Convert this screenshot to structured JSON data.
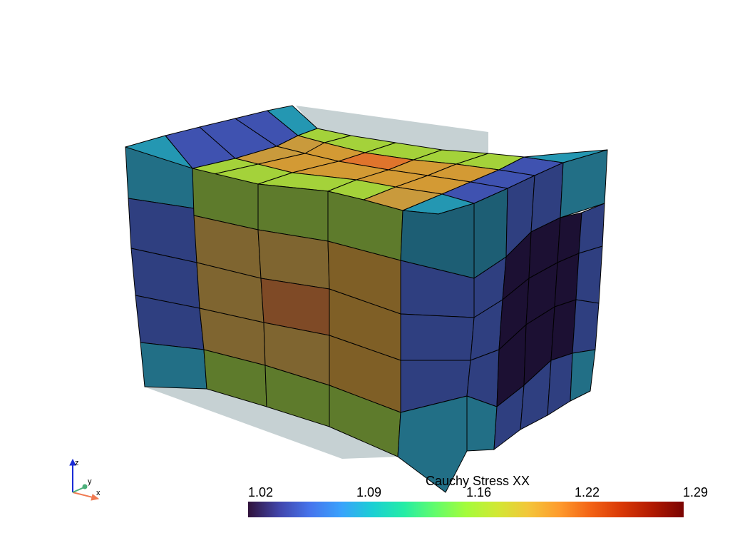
{
  "colorbar": {
    "title": "Cauchy Stress XX",
    "ticks": [
      "1.02",
      "1.09",
      "1.16",
      "1.22",
      "1.29"
    ],
    "stops": [
      "#30123b",
      "#4145ab",
      "#4675ed",
      "#39a2fc",
      "#1bcfd4",
      "#24eca6",
      "#61fc6c",
      "#a4fc3b",
      "#d1e834",
      "#f3c63a",
      "#fe9b2d",
      "#f36315",
      "#d93806",
      "#b11901",
      "#7a0402"
    ]
  },
  "axes_widget": {
    "x_label": "x",
    "y_label": "y",
    "z_label": "z",
    "x_color": "#f07a52",
    "y_color": "#4caf7a",
    "z_color": "#1a2bd6"
  },
  "mesh": {
    "edge_color": "#000000",
    "undeformed_color": "#c6d1d3"
  }
}
